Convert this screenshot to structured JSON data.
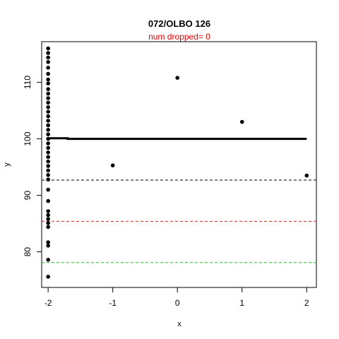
{
  "chart_data": {
    "type": "scatter",
    "title": "072/OLBO 126",
    "subtitle": "num dropped= 0",
    "xlabel": "x",
    "ylabel": "y",
    "xlim": [
      -2.1,
      2.15
    ],
    "ylim": [
      73.7,
      117.2
    ],
    "x_ticks": [
      -2,
      -1,
      0,
      1,
      2
    ],
    "x_tick_labels": [
      "-2",
      "-1",
      "0",
      "1",
      "2"
    ],
    "y_ticks": [
      80,
      90,
      100,
      110
    ],
    "y_tick_labels": [
      "80",
      "90",
      "100",
      "110"
    ],
    "grid": false,
    "legend": "none",
    "points": [
      {
        "x": -2,
        "y": 116.0
      },
      {
        "x": -2,
        "y": 115.2
      },
      {
        "x": -2,
        "y": 114.4
      },
      {
        "x": -2,
        "y": 113.6
      },
      {
        "x": -2,
        "y": 112.6
      },
      {
        "x": -2,
        "y": 111.5
      },
      {
        "x": -2,
        "y": 110.5
      },
      {
        "x": -2,
        "y": 109.8
      },
      {
        "x": -2,
        "y": 108.8
      },
      {
        "x": -2,
        "y": 108.0
      },
      {
        "x": -2,
        "y": 107.2
      },
      {
        "x": -2,
        "y": 106.4
      },
      {
        "x": -2,
        "y": 105.6
      },
      {
        "x": -2,
        "y": 104.8
      },
      {
        "x": -2,
        "y": 104.0
      },
      {
        "x": -2,
        "y": 103.2
      },
      {
        "x": -2,
        "y": 102.4
      },
      {
        "x": -2,
        "y": 101.6
      },
      {
        "x": -2,
        "y": 100.8
      },
      {
        "x": -2,
        "y": 100.0
      },
      {
        "x": -2,
        "y": 99.2
      },
      {
        "x": -2,
        "y": 98.4
      },
      {
        "x": -2,
        "y": 97.6
      },
      {
        "x": -2,
        "y": 96.8
      },
      {
        "x": -2,
        "y": 96.0
      },
      {
        "x": -2,
        "y": 95.2
      },
      {
        "x": -2,
        "y": 94.4
      },
      {
        "x": -2,
        "y": 93.6
      },
      {
        "x": -2,
        "y": 92.8
      },
      {
        "x": -2,
        "y": 91.0
      },
      {
        "x": -2,
        "y": 89.0
      },
      {
        "x": -2,
        "y": 87.2
      },
      {
        "x": -2,
        "y": 86.5
      },
      {
        "x": -2,
        "y": 85.8
      },
      {
        "x": -2,
        "y": 85.1
      },
      {
        "x": -2,
        "y": 84.4
      },
      {
        "x": -2,
        "y": 81.7
      },
      {
        "x": -2,
        "y": 81.1
      },
      {
        "x": -2,
        "y": 78.6
      },
      {
        "x": -2,
        "y": 75.6
      },
      {
        "x": -1,
        "y": 95.3
      },
      {
        "x": 0,
        "y": 110.8
      },
      {
        "x": 1,
        "y": 103.0
      },
      {
        "x": 2,
        "y": 93.5
      }
    ],
    "point_color": "#000000",
    "fit_line": {
      "x": [
        -2,
        -1.7,
        -1.7,
        2
      ],
      "y": [
        100.1,
        100.1,
        100.0,
        100.0
      ],
      "color": "#000000"
    },
    "reference_lines": [
      {
        "y": 92.7,
        "color": "#000000",
        "style": "dashed"
      },
      {
        "y": 85.4,
        "color": "#dd2222",
        "style": "dashed"
      },
      {
        "y": 78.1,
        "color": "#22bb22",
        "style": "dashed"
      }
    ],
    "subtitle_color": "#ee0000"
  }
}
